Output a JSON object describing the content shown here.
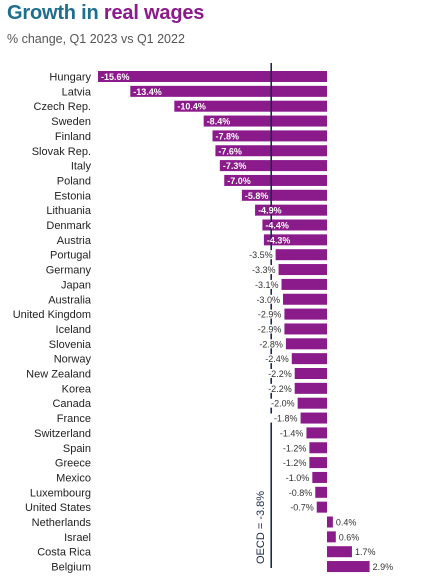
{
  "title": {
    "part1": "Growth in",
    "part2": "real wages"
  },
  "subtitle": "% change, Q1 2023 vs Q1 2022",
  "colors": {
    "bar": "#8b1a8b",
    "reference_line": "#1b2a4a",
    "title_blue": "#1f6e8c",
    "title_purple": "#8b1a8b"
  },
  "chart_data": {
    "type": "bar",
    "orientation": "horizontal",
    "categories": [
      "Hungary",
      "Latvia",
      "Czech Rep.",
      "Sweden",
      "Finland",
      "Slovak Rep.",
      "Italy",
      "Poland",
      "Estonia",
      "Lithuania",
      "Denmark",
      "Austria",
      "Portugal",
      "Germany",
      "Japan",
      "Australia",
      "United Kingdom",
      "Iceland",
      "Slovenia",
      "Norway",
      "New Zealand",
      "Korea",
      "Canada",
      "France",
      "Switzerland",
      "Spain",
      "Greece",
      "Mexico",
      "Luxembourg",
      "United States",
      "Netherlands",
      "Israel",
      "Costa Rica",
      "Belgium"
    ],
    "values": [
      -15.6,
      -13.4,
      -10.4,
      -8.4,
      -7.8,
      -7.6,
      -7.3,
      -7.0,
      -5.8,
      -4.9,
      -4.4,
      -4.3,
      -3.5,
      -3.3,
      -3.1,
      -3.0,
      -2.9,
      -2.9,
      -2.8,
      -2.4,
      -2.2,
      -2.2,
      -2.0,
      -1.8,
      -1.4,
      -1.2,
      -1.2,
      -1.0,
      -0.8,
      -0.7,
      0.4,
      0.6,
      1.7,
      2.9
    ],
    "value_labels": [
      "-15.6%",
      "-13.4%",
      "-10.4%",
      "-8.4%",
      "-7.8%",
      "-7.6%",
      "-7.3%",
      "-7.0%",
      "-5.8%",
      "-4.9%",
      "-4.4%",
      "-4.3%",
      "-3.5%",
      "-3.3%",
      "-3.1%",
      "-3.0%",
      "-2.9%",
      "-2.9%",
      "-2.8%",
      "-2.4%",
      "-2.2%",
      "-2.2%",
      "-2.0%",
      "-1.8%",
      "-1.4%",
      "-1.2%",
      "-1.2%",
      "-1.0%",
      "-0.8%",
      "-0.7%",
      "0.4%",
      "0.6%",
      "1.7%",
      "2.9%"
    ],
    "reference_line": {
      "value": -3.8,
      "label": "OECD = -3.8%"
    },
    "xlim": [
      -15.6,
      2.9
    ],
    "grid": false,
    "legend": "none"
  }
}
